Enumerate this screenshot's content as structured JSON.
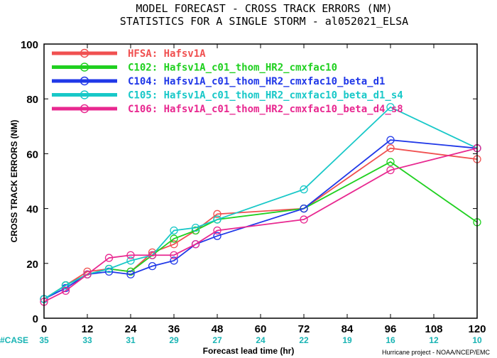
{
  "header": {
    "line1": "MODEL FORECAST - CROSS TRACK ERRORS (NM)",
    "line2": "STATISTICS FOR A SINGLE STORM - al052021_ELSA"
  },
  "footer": {
    "case_label": "#CASE",
    "credit": "Hurricane project - NOAA/NCEP/EMC"
  },
  "colors": {
    "case_text": "#19b4b4"
  },
  "chart_data": {
    "type": "line",
    "title": "MODEL FORECAST - CROSS TRACK ERRORS (NM)",
    "subtitle": "STATISTICS FOR A SINGLE STORM - al052021_ELSA",
    "xlabel": "Forecast lead time (hr)",
    "ylabel": "CROSS TRACK ERRORS (NM)",
    "xlim": [
      0,
      120
    ],
    "ylim": [
      0,
      100
    ],
    "xticks": [
      0,
      12,
      24,
      36,
      48,
      60,
      72,
      84,
      96,
      108,
      120
    ],
    "yticks": [
      0,
      20,
      40,
      60,
      80,
      100
    ],
    "grid": false,
    "legend_position": "top-left",
    "cases": [
      35,
      33,
      31,
      29,
      27,
      24,
      22,
      19,
      16,
      12,
      10
    ],
    "series": [
      {
        "name": "HFSA: Hafsv1A",
        "color": "#f05050",
        "x": [
          0,
          6,
          12,
          18,
          24,
          30,
          36,
          42,
          48,
          72,
          96,
          120
        ],
        "y": [
          7,
          12,
          17,
          18,
          17,
          24,
          27,
          32,
          38,
          40,
          62,
          58
        ]
      },
      {
        "name": "C102: Hafsv1A_c01_thom_HR2_cmxfac10",
        "color": "#20d020",
        "x": [
          0,
          6,
          12,
          18,
          24,
          30,
          36,
          42,
          48,
          72,
          96,
          120
        ],
        "y": [
          7,
          12,
          16,
          18,
          17,
          23,
          29,
          32,
          36,
          40,
          57,
          35
        ]
      },
      {
        "name": "C104: Hafsv1A_c01_thom_HR2_cmxfac10_beta_d1",
        "color": "#2038e8",
        "x": [
          0,
          6,
          12,
          18,
          24,
          30,
          36,
          42,
          48,
          72,
          96,
          120
        ],
        "y": [
          7,
          11,
          16,
          17,
          16,
          19,
          21,
          27,
          30,
          40,
          65,
          62
        ]
      },
      {
        "name": "C105: Hafsv1A_c01_thom_HR2_cmxfac10_beta_d1_s4",
        "color": "#18c8c8",
        "x": [
          0,
          6,
          12,
          18,
          24,
          30,
          36,
          42,
          48,
          72,
          96,
          120
        ],
        "y": [
          7,
          12,
          16,
          18,
          21,
          23,
          32,
          33,
          36,
          47,
          77,
          62
        ]
      },
      {
        "name": "C106: Hafsv1A_c01_thom_HR2_cmxfac10_beta_d4_s8",
        "color": "#e82890",
        "x": [
          0,
          6,
          12,
          18,
          24,
          30,
          36,
          42,
          48,
          72,
          96,
          120
        ],
        "y": [
          6,
          10,
          16,
          22,
          23,
          23,
          23,
          27,
          32,
          36,
          54,
          62
        ]
      }
    ]
  }
}
